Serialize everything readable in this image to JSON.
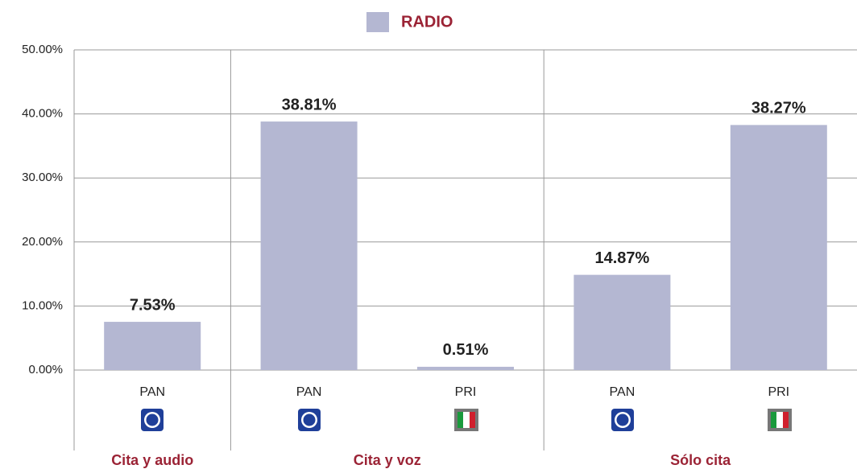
{
  "chart_data": {
    "type": "bar",
    "legend": "RADIO",
    "color": "#b4b7d2",
    "groups": [
      {
        "name": "Cita y audio",
        "categories": [
          "PAN"
        ],
        "values": [
          7.53
        ],
        "value_labels": [
          "7.53%"
        ]
      },
      {
        "name": "Cita y voz",
        "categories": [
          "PAN",
          "PRI"
        ],
        "values": [
          38.81,
          0.51
        ],
        "value_labels": [
          "38.81%",
          "0.51%"
        ]
      },
      {
        "name": "Sólo cita",
        "categories": [
          "PAN",
          "PRI"
        ],
        "values": [
          14.87,
          38.27
        ],
        "value_labels": [
          "14.87%",
          "38.27%"
        ]
      }
    ],
    "ylim": [
      0,
      50
    ],
    "yticks": [
      {
        "value": 0,
        "label": "0.00%"
      },
      {
        "value": 10,
        "label": "10.00%"
      },
      {
        "value": 20,
        "label": "20.00%"
      },
      {
        "value": 30,
        "label": "30.00%"
      },
      {
        "value": 40,
        "label": "40.00%"
      },
      {
        "value": 50,
        "label": "50.00%"
      }
    ],
    "grid": true
  }
}
